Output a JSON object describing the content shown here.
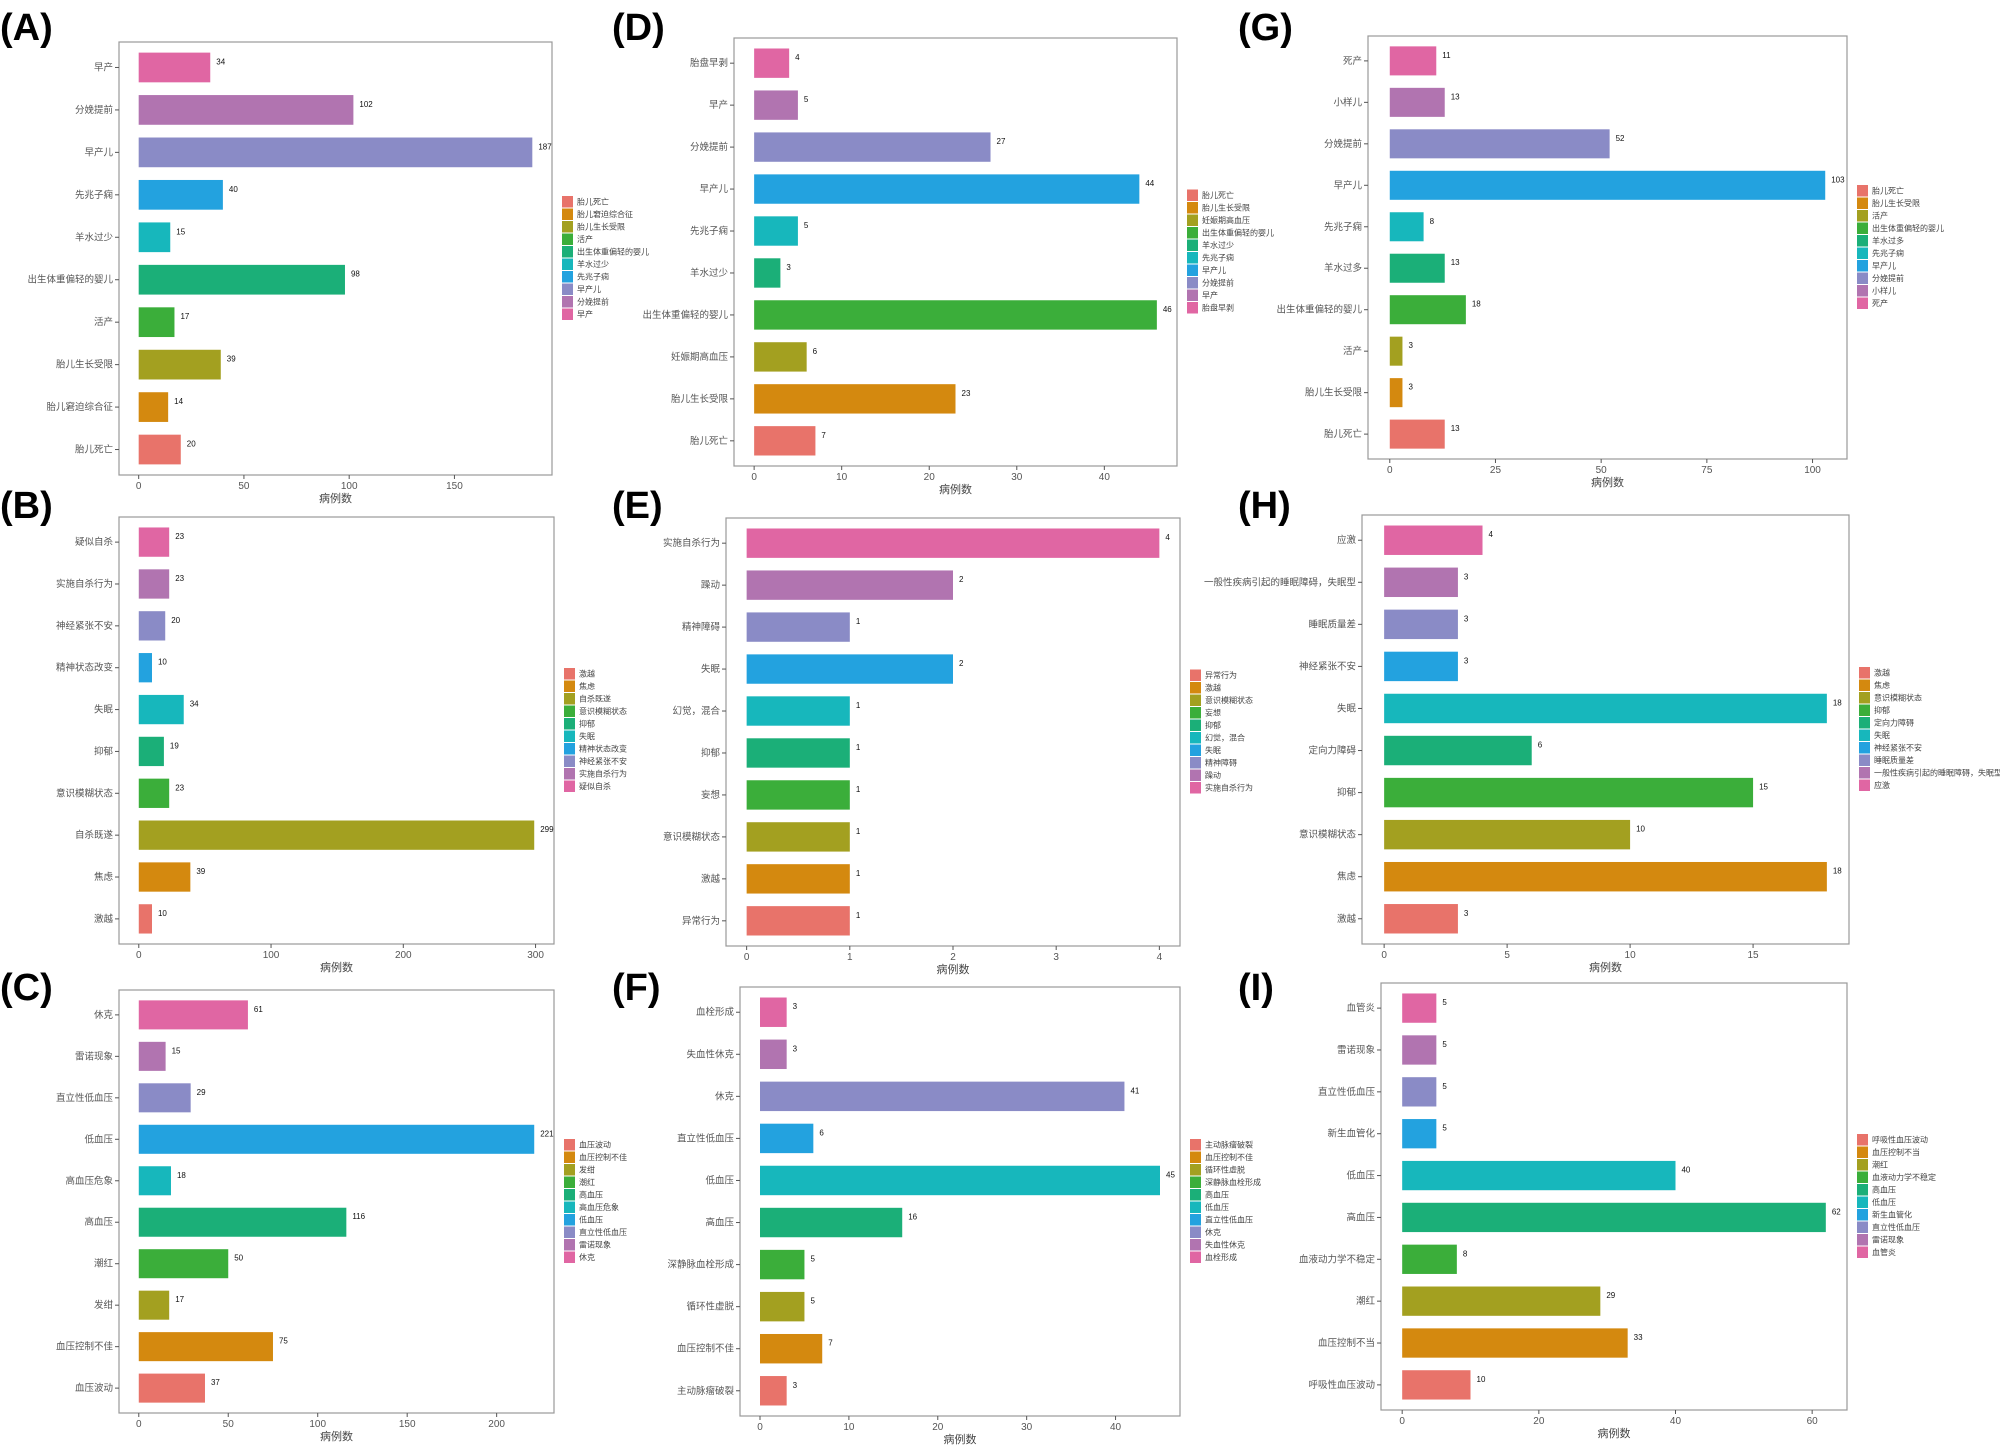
{
  "palette": [
    "#E8736A",
    "#D4890F",
    "#A3A020",
    "#3BAE3A",
    "#1BAF78",
    "#17B7BC",
    "#23A2DF",
    "#8A8BC6",
    "#B174B0",
    "#E066A3"
  ],
  "chart_data": [
    {
      "panel": "(A)",
      "type": "bar",
      "orientation": "horizontal",
      "xlabel": "病例数",
      "xticks": [
        0,
        50,
        100,
        150
      ],
      "legend_position": "right",
      "grid": false,
      "categories": [
        "胎儿死亡",
        "胎儿窘迫综合征",
        "胎儿生长受限",
        "活产",
        "出生体重偏轻的婴儿",
        "羊水过少",
        "先兆子痫",
        "早产儿",
        "分娩提前",
        "早产"
      ],
      "values": [
        20,
        14,
        39,
        17,
        98,
        15,
        40,
        187,
        102,
        34
      ]
    },
    {
      "panel": "(B)",
      "type": "bar",
      "orientation": "horizontal",
      "xlabel": "病例数",
      "xticks": [
        0,
        100,
        200,
        300
      ],
      "legend_position": "right",
      "grid": false,
      "categories": [
        "激越",
        "焦虑",
        "自杀既遂",
        "意识模糊状态",
        "抑郁",
        "失眠",
        "精神状态改变",
        "神经紧张不安",
        "实施自杀行为",
        "疑似自杀"
      ],
      "values": [
        10,
        39,
        299,
        23,
        19,
        34,
        10,
        20,
        23,
        23
      ]
    },
    {
      "panel": "(C)",
      "type": "bar",
      "orientation": "horizontal",
      "xlabel": "病例数",
      "xticks": [
        0,
        50,
        100,
        150,
        200
      ],
      "legend_position": "right",
      "grid": false,
      "categories": [
        "血压波动",
        "血压控制不佳",
        "发绀",
        "潮红",
        "高血压",
        "高血压危象",
        "低血压",
        "直立性低血压",
        "雷诺现象",
        "休克"
      ],
      "values": [
        37,
        75,
        17,
        50,
        116,
        18,
        221,
        29,
        15,
        61
      ]
    },
    {
      "panel": "(D)",
      "type": "bar",
      "orientation": "horizontal",
      "xlabel": "病例数",
      "xticks": [
        0,
        10,
        20,
        30,
        40
      ],
      "legend_position": "right",
      "grid": false,
      "categories": [
        "胎儿死亡",
        "胎儿生长受限",
        "妊娠期高血压",
        "出生体重偏轻的婴儿",
        "羊水过少",
        "先兆子痫",
        "早产儿",
        "分娩提前",
        "早产",
        "胎盘早剥"
      ],
      "values": [
        7,
        23,
        6,
        46,
        3,
        5,
        44,
        27,
        5,
        4
      ]
    },
    {
      "panel": "(E)",
      "type": "bar",
      "orientation": "horizontal",
      "xlabel": "病例数",
      "xticks": [
        0,
        1,
        2,
        3,
        4
      ],
      "legend_position": "right",
      "grid": false,
      "categories": [
        "异常行为",
        "激越",
        "意识模糊状态",
        "妄想",
        "抑郁",
        "幻觉，混合",
        "失眠",
        "精神障碍",
        "躁动",
        "实施自杀行为"
      ],
      "values": [
        1,
        1,
        1,
        1,
        1,
        1,
        2,
        1,
        2,
        4
      ]
    },
    {
      "panel": "(F)",
      "type": "bar",
      "orientation": "horizontal",
      "xlabel": "病例数",
      "xticks": [
        0,
        10,
        20,
        30,
        40
      ],
      "legend_position": "right",
      "grid": false,
      "categories": [
        "主动脉瘤破裂",
        "血压控制不佳",
        "循环性虚脱",
        "深静脉血栓形成",
        "高血压",
        "低血压",
        "直立性低血压",
        "休克",
        "失血性休克",
        "血栓形成"
      ],
      "values": [
        3,
        7,
        5,
        5,
        16,
        45,
        6,
        41,
        3,
        3
      ]
    },
    {
      "panel": "(G)",
      "type": "bar",
      "orientation": "horizontal",
      "xlabel": "病例数",
      "xticks": [
        0,
        25,
        50,
        75,
        100
      ],
      "legend_position": "right",
      "grid": false,
      "categories": [
        "胎儿死亡",
        "胎儿生长受限",
        "活产",
        "出生体重偏轻的婴儿",
        "羊水过多",
        "先兆子痫",
        "早产儿",
        "分娩提前",
        "小样儿",
        "死产"
      ],
      "values": [
        13,
        3,
        3,
        18,
        13,
        8,
        103,
        52,
        13,
        11
      ]
    },
    {
      "panel": "(H)",
      "type": "bar",
      "orientation": "horizontal",
      "xlabel": "病例数",
      "xticks": [
        0,
        5,
        10,
        15
      ],
      "legend_position": "right",
      "grid": false,
      "categories": [
        "激越",
        "焦虑",
        "意识模糊状态",
        "抑郁",
        "定向力障碍",
        "失眠",
        "神经紧张不安",
        "睡眠质量差",
        "一般性疾病引起的睡眠障碍，失眠型",
        "应激"
      ],
      "values": [
        3,
        18,
        10,
        15,
        6,
        18,
        3,
        3,
        3,
        4
      ]
    },
    {
      "panel": "(I)",
      "type": "bar",
      "orientation": "horizontal",
      "xlabel": "病例数",
      "xticks": [
        0,
        20,
        40,
        60
      ],
      "legend_position": "right",
      "grid": false,
      "categories": [
        "呼吸性血压波动",
        "血压控制不当",
        "潮红",
        "血液动力学不稳定",
        "高血压",
        "低血压",
        "新生血管化",
        "直立性低血压",
        "雷诺现象",
        "血管炎"
      ],
      "values": [
        10,
        33,
        29,
        8,
        62,
        40,
        5,
        5,
        5,
        5
      ]
    }
  ]
}
